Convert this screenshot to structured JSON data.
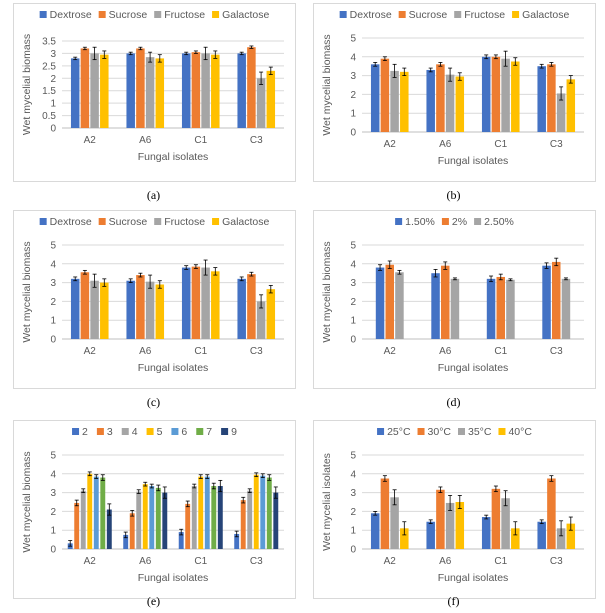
{
  "chart_data": [
    {
      "panel_label": "(a)",
      "type": "bar",
      "xlabel": "Fungal isolates",
      "ylabel": "Wet mycelial biomass",
      "ylim": [
        0,
        3.5
      ],
      "yticks": [
        "0",
        "0.5",
        "1",
        "1.5",
        "2",
        "2.5",
        "3",
        "3.5"
      ],
      "grid": true,
      "legend_position": "top",
      "categories": [
        "A2",
        "A6",
        "C1",
        "C3"
      ],
      "series": [
        {
          "name": "Dextrose",
          "color": "#4472C4",
          "values": [
            2.8,
            3.0,
            3.0,
            3.0
          ],
          "errors": [
            0.05,
            0.05,
            0.05,
            0.05
          ]
        },
        {
          "name": "Sucrose",
          "color": "#ED7D31",
          "values": [
            3.2,
            3.2,
            3.05,
            3.25
          ],
          "errors": [
            0.05,
            0.05,
            0.05,
            0.05
          ]
        },
        {
          "name": "Fructose",
          "color": "#A5A5A5",
          "values": [
            3.0,
            2.85,
            3.0,
            2.0
          ],
          "errors": [
            0.25,
            0.2,
            0.25,
            0.25
          ]
        },
        {
          "name": "Galactose",
          "color": "#FFC000",
          "values": [
            2.95,
            2.8,
            2.95,
            2.3
          ],
          "errors": [
            0.15,
            0.15,
            0.15,
            0.15
          ]
        }
      ]
    },
    {
      "panel_label": "(b)",
      "type": "bar",
      "xlabel": "Fungal isolates",
      "ylabel": "Wet mycelial biomass",
      "ylim": [
        0,
        5
      ],
      "yticks": [
        "0",
        "1",
        "2",
        "3",
        "4",
        "5"
      ],
      "grid": true,
      "legend_position": "top",
      "categories": [
        "A2",
        "A6",
        "C1",
        "C3"
      ],
      "series": [
        {
          "name": "Dextrose",
          "color": "#4472C4",
          "values": [
            3.6,
            3.3,
            4.0,
            3.5
          ],
          "errors": [
            0.1,
            0.1,
            0.1,
            0.1
          ]
        },
        {
          "name": "Sucrose",
          "color": "#ED7D31",
          "values": [
            3.9,
            3.6,
            4.0,
            3.6
          ],
          "errors": [
            0.1,
            0.1,
            0.1,
            0.1
          ]
        },
        {
          "name": "Fructose",
          "color": "#A5A5A5",
          "values": [
            3.25,
            3.05,
            3.9,
            2.05
          ],
          "errors": [
            0.35,
            0.35,
            0.4,
            0.35
          ]
        },
        {
          "name": "Galactose",
          "color": "#FFC000",
          "values": [
            3.2,
            2.95,
            3.75,
            2.8
          ],
          "errors": [
            0.2,
            0.2,
            0.2,
            0.2
          ]
        }
      ]
    },
    {
      "panel_label": "(c)",
      "type": "bar",
      "xlabel": "Fungal isolates",
      "ylabel": "Wet mycelial biomass",
      "ylim": [
        0,
        5
      ],
      "yticks": [
        "0",
        "1",
        "2",
        "3",
        "4",
        "5"
      ],
      "grid": true,
      "legend_position": "top",
      "categories": [
        "A2",
        "A6",
        "C1",
        "C3"
      ],
      "series": [
        {
          "name": "Dextrose",
          "color": "#4472C4",
          "values": [
            3.2,
            3.1,
            3.8,
            3.2
          ],
          "errors": [
            0.1,
            0.1,
            0.1,
            0.1
          ]
        },
        {
          "name": "Sucrose",
          "color": "#ED7D31",
          "values": [
            3.55,
            3.4,
            3.85,
            3.45
          ],
          "errors": [
            0.1,
            0.1,
            0.1,
            0.1
          ]
        },
        {
          "name": "Fructose",
          "color": "#A5A5A5",
          "values": [
            3.1,
            3.05,
            3.8,
            2.0
          ],
          "errors": [
            0.35,
            0.35,
            0.4,
            0.35
          ]
        },
        {
          "name": "Galactose",
          "color": "#FFC000",
          "values": [
            3.0,
            2.9,
            3.6,
            2.65
          ],
          "errors": [
            0.2,
            0.2,
            0.2,
            0.2
          ]
        }
      ]
    },
    {
      "panel_label": "(d)",
      "type": "bar",
      "xlabel": "Fungal isolates",
      "ylabel": "Wet mycelial biomass",
      "ylim": [
        0,
        5
      ],
      "yticks": [
        "0",
        "1",
        "2",
        "3",
        "4",
        "5"
      ],
      "grid": true,
      "legend_position": "top",
      "categories": [
        "A2",
        "A6",
        "C1",
        "C3"
      ],
      "series": [
        {
          "name": "1.50%",
          "color": "#4472C4",
          "values": [
            3.8,
            3.5,
            3.2,
            3.9
          ],
          "errors": [
            0.15,
            0.2,
            0.15,
            0.15
          ]
        },
        {
          "name": "2%",
          "color": "#ED7D31",
          "values": [
            3.95,
            3.9,
            3.3,
            4.1
          ],
          "errors": [
            0.2,
            0.2,
            0.15,
            0.2
          ]
        },
        {
          "name": "2.50%",
          "color": "#A5A5A5",
          "values": [
            3.55,
            3.2,
            3.15,
            3.2
          ],
          "errors": [
            0.1,
            0.05,
            0.05,
            0.05
          ]
        }
      ]
    },
    {
      "panel_label": "(e)",
      "type": "bar",
      "xlabel": "Fungal isolates",
      "ylabel": "Wet mycelial biomass",
      "ylim": [
        0,
        5
      ],
      "yticks": [
        "0",
        "1",
        "2",
        "3",
        "4",
        "5"
      ],
      "grid": true,
      "legend_position": "top",
      "categories": [
        "A2",
        "A6",
        "C1",
        "C3"
      ],
      "series": [
        {
          "name": "2",
          "color": "#4472C4",
          "values": [
            0.3,
            0.75,
            0.9,
            0.8
          ],
          "errors": [
            0.15,
            0.15,
            0.15,
            0.15
          ]
        },
        {
          "name": "3",
          "color": "#ED7D31",
          "values": [
            2.45,
            1.9,
            2.4,
            2.6
          ],
          "errors": [
            0.15,
            0.15,
            0.15,
            0.15
          ]
        },
        {
          "name": "4",
          "color": "#A5A5A5",
          "values": [
            3.1,
            3.05,
            3.35,
            3.1
          ],
          "errors": [
            0.1,
            0.1,
            0.1,
            0.1
          ]
        },
        {
          "name": "5",
          "color": "#FFC000",
          "values": [
            4.0,
            3.45,
            3.85,
            3.95
          ],
          "errors": [
            0.1,
            0.1,
            0.1,
            0.1
          ]
        },
        {
          "name": "6",
          "color": "#5B9BD5",
          "values": [
            3.85,
            3.35,
            3.85,
            3.9
          ],
          "errors": [
            0.1,
            0.1,
            0.1,
            0.1
          ]
        },
        {
          "name": "7",
          "color": "#70AD47",
          "values": [
            3.8,
            3.25,
            3.35,
            3.8
          ],
          "errors": [
            0.15,
            0.15,
            0.15,
            0.15
          ]
        },
        {
          "name": "9",
          "color": "#264478",
          "values": [
            2.1,
            3.0,
            3.35,
            3.0
          ],
          "errors": [
            0.3,
            0.3,
            0.3,
            0.3
          ]
        }
      ]
    },
    {
      "panel_label": "(f)",
      "type": "bar",
      "xlabel": "Fungal isolates",
      "ylabel": "Wet mycelial isolates",
      "ylim": [
        0,
        5
      ],
      "yticks": [
        "0",
        "1",
        "2",
        "3",
        "4",
        "5"
      ],
      "grid": true,
      "legend_position": "top",
      "categories": [
        "A2",
        "A6",
        "C1",
        "C3"
      ],
      "series": [
        {
          "name": "25°C",
          "color": "#4472C4",
          "values": [
            1.9,
            1.45,
            1.7,
            1.45
          ],
          "errors": [
            0.1,
            0.1,
            0.1,
            0.1
          ]
        },
        {
          "name": "30°C",
          "color": "#ED7D31",
          "values": [
            3.75,
            3.15,
            3.2,
            3.75
          ],
          "errors": [
            0.15,
            0.15,
            0.15,
            0.15
          ]
        },
        {
          "name": "35°C",
          "color": "#A5A5A5",
          "values": [
            2.75,
            2.45,
            2.7,
            1.1
          ],
          "errors": [
            0.4,
            0.4,
            0.4,
            0.4
          ]
        },
        {
          "name": "40°C",
          "color": "#FFC000",
          "values": [
            1.1,
            2.5,
            1.1,
            1.35
          ],
          "errors": [
            0.35,
            0.35,
            0.35,
            0.35
          ]
        }
      ]
    }
  ]
}
